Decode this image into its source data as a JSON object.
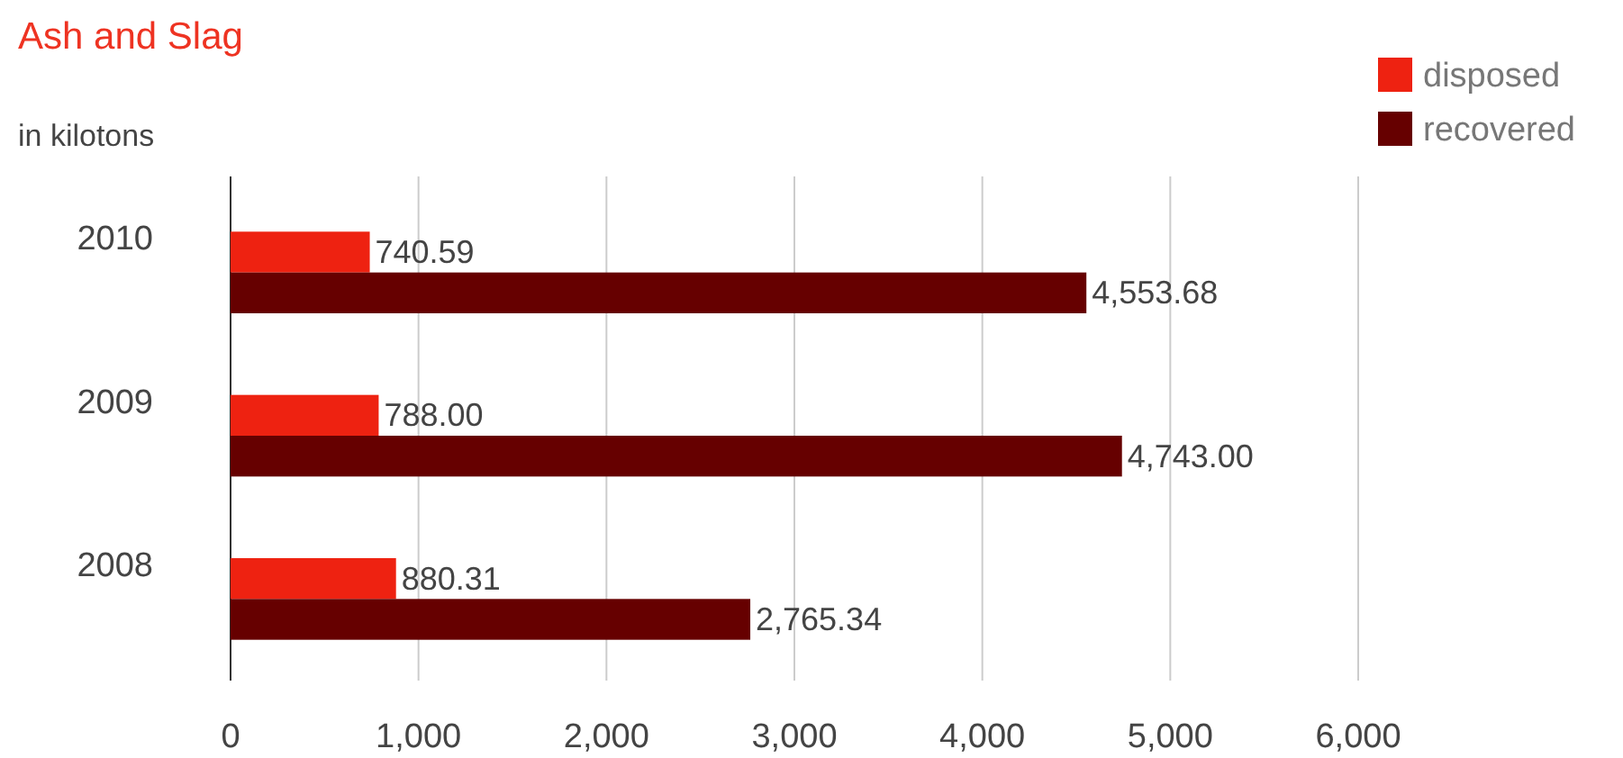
{
  "chart_data": {
    "type": "bar",
    "title": "Ash and Slag",
    "subtitle": "in kilotons",
    "orientation": "horizontal",
    "categories": [
      "2010",
      "2009",
      "2008"
    ],
    "series": [
      {
        "name": "disposed",
        "color": "#ee2211",
        "values": [
          740.59,
          788.0,
          880.31
        ]
      },
      {
        "name": "recovered",
        "color": "#660000",
        "values": [
          4553.68,
          4743.0,
          2765.34
        ]
      }
    ],
    "value_labels": [
      [
        "740.59",
        "788.00",
        "880.31"
      ],
      [
        "4,553.68",
        "4,743.00",
        "2,765.34"
      ]
    ],
    "xlim": [
      0,
      6000
    ],
    "xticks": [
      {
        "value": 0,
        "label": "0"
      },
      {
        "value": 1000,
        "label": "1,000"
      },
      {
        "value": 2000,
        "label": "2,000"
      },
      {
        "value": 3000,
        "label": "3,000"
      },
      {
        "value": 4000,
        "label": "4,000"
      },
      {
        "value": 5000,
        "label": "5,000"
      },
      {
        "value": 6000,
        "label": "6,000"
      }
    ],
    "grid": "x",
    "legend": "top right"
  }
}
